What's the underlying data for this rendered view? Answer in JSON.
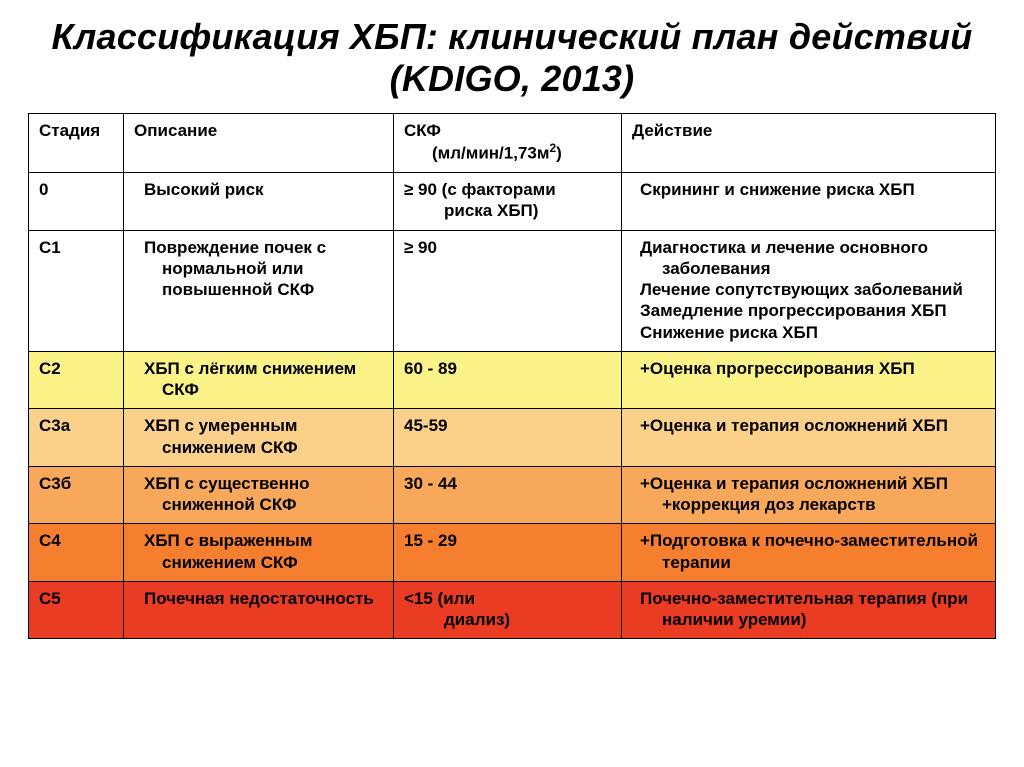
{
  "title": "Классификация ХБП: клинический план действий (KDIGO, 2013)",
  "columns": {
    "stage": "Стадия",
    "desc": "Описание",
    "gfr_line1": "СКФ",
    "gfr_line2": "(мл/мин/1,73м",
    "gfr_sup": "2",
    "gfr_close": ")",
    "action": "Действие"
  },
  "rows": [
    {
      "bg": "#ffffff",
      "stage": "0",
      "desc": "Высокий риск",
      "gfr_a": "≥ 90 (с факторами",
      "gfr_b": "риска ХБП)",
      "actions": [
        "Скрининг и снижение риска ХБП"
      ]
    },
    {
      "bg": "#ffffff",
      "stage": "С1",
      "desc": "Повреждение почек с нормальной или повышенной СКФ",
      "gfr_a": "≥ 90",
      "gfr_b": "",
      "actions": [
        "Диагностика и лечение основного заболевания",
        "Лечение сопутствующих заболеваний",
        "Замедление прогрессирования ХБП",
        "Снижение риска ХБП"
      ]
    },
    {
      "bg": "#fbf387",
      "stage": "С2",
      "desc": "ХБП с лёгким снижением СКФ",
      "gfr_a": "60 - 89",
      "gfr_b": "",
      "actions": [
        "+Оценка прогрессирования ХБП"
      ]
    },
    {
      "bg": "#fbd08a",
      "stage": "С3а",
      "desc": "ХБП с умеренным снижением СКФ",
      "gfr_a": "45-59",
      "gfr_b": "",
      "actions": [
        "+Оценка и терапия осложнений ХБП"
      ]
    },
    {
      "bg": "#f7a85a",
      "stage": "С3б",
      "desc": "ХБП с существенно сниженной СКФ",
      "gfr_a": "30 - 44",
      "gfr_b": "",
      "actions": [
        "+Оценка и терапия осложнений ХБП +коррекция доз лекарств"
      ]
    },
    {
      "bg": "#f57f2f",
      "stage": "С4",
      "desc": "ХБП с выраженным снижением СКФ",
      "gfr_a": "15 - 29",
      "gfr_b": "",
      "actions": [
        "+Подготовка к почечно-заместительной терапии"
      ]
    },
    {
      "bg": "#ea3b23",
      "stage": "С5",
      "desc": "Почечная недостаточность",
      "gfr_a": "<15 (или",
      "gfr_b": "диализ)",
      "actions": [
        "Почечно-заместительная терапия (при наличии уремии)"
      ]
    }
  ],
  "style": {
    "border_color": "#000000",
    "title_fontsize": 36,
    "header_fontsize": 17,
    "stage_fontsize": 22,
    "cell_fontsize": 17
  }
}
